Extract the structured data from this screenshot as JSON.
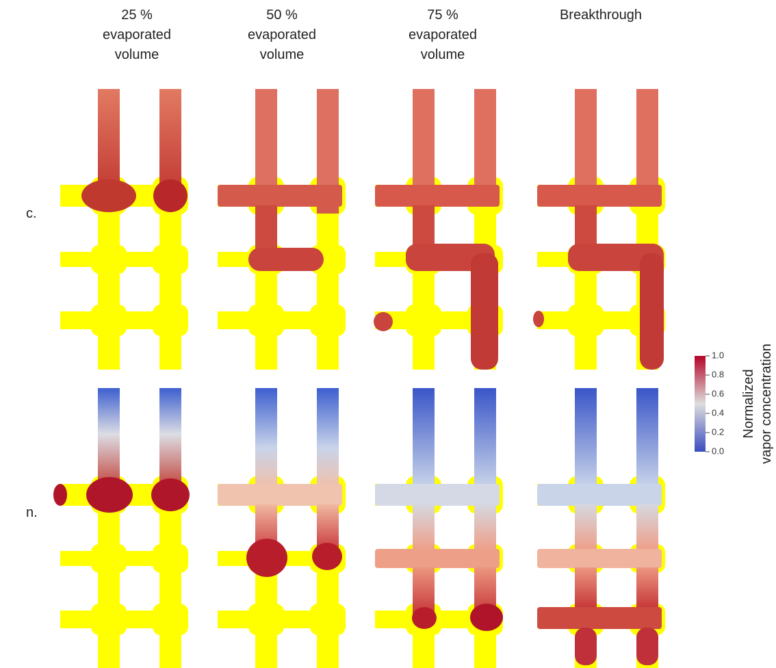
{
  "columns": [
    {
      "lines": [
        "25 %",
        "evaporated",
        "volume"
      ]
    },
    {
      "lines": [
        "50 %",
        "evaporated",
        "volume"
      ]
    },
    {
      "lines": [
        "75 %",
        "evaporated",
        "volume"
      ]
    },
    {
      "lines": [
        "Breakthrough"
      ]
    }
  ],
  "rows": [
    "c.",
    "n."
  ],
  "colorbar": {
    "label_lines": [
      "Normalized",
      "vapor concentration"
    ],
    "lim": [
      0,
      1
    ],
    "ticks": [
      {
        "value": 0,
        "label": "0.0"
      },
      {
        "value": 0.2,
        "label": "0.2"
      },
      {
        "value": 0.4,
        "label": "0.4"
      },
      {
        "value": 0.6,
        "label": "0.6"
      },
      {
        "value": 0.8,
        "label": "0.8"
      },
      {
        "value": 1,
        "label": "1.0"
      }
    ]
  }
}
